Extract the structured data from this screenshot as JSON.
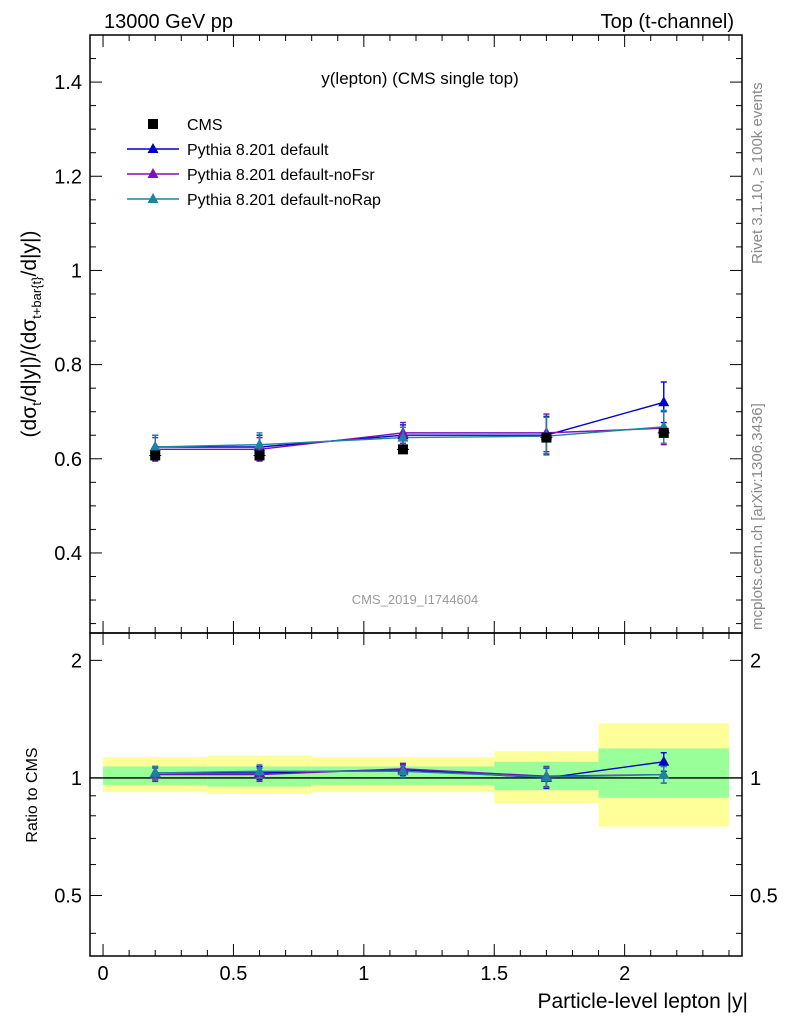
{
  "header": {
    "left": "13000 GeV pp",
    "right": "Top (t-channel)"
  },
  "side_labels": {
    "upper": "Rivet 3.1.10, ≥ 100k events",
    "lower": "mcplots.cern.ch [arXiv:1306.3436]"
  },
  "chart_data": [
    {
      "type": "line",
      "title": "y(lepton) (CMS single top)",
      "watermark": "CMS_2019_I1744604",
      "ylabel": "(dσt/d|y|)/(dσt+bar{t}/d|y|)",
      "ylim": [
        0.23,
        1.5
      ],
      "xlim": [
        -0.05,
        2.45
      ],
      "yticks": [
        "0.4",
        "0.6",
        "0.8",
        "1",
        "1.2",
        "1.4"
      ],
      "grid": false,
      "legend_position": "top-left",
      "bins": [
        [
          0,
          0.4
        ],
        [
          0.4,
          0.8
        ],
        [
          0.8,
          1.5
        ],
        [
          1.5,
          1.9
        ],
        [
          1.9,
          2.4
        ]
      ],
      "x": [
        0.2,
        0.6,
        1.15,
        1.7,
        2.15
      ],
      "series": [
        {
          "name": "CMS",
          "marker": "square",
          "color": "#000000",
          "values": [
            0.607,
            0.607,
            0.62,
            0.645,
            0.655
          ],
          "errors": [
            0.006,
            0.006,
            0.006,
            0.006,
            0.006
          ]
        },
        {
          "name": "Pythia 8.201 default",
          "marker": "triangle",
          "color": "#0000cc",
          "values": [
            0.625,
            0.625,
            0.65,
            0.65,
            0.72
          ],
          "errors": [
            0.025,
            0.025,
            0.022,
            0.04,
            0.043
          ]
        },
        {
          "name": "Pythia 8.201 default-noFsr",
          "marker": "triangle",
          "color": "#7b10b8",
          "values": [
            0.62,
            0.62,
            0.655,
            0.655,
            0.665
          ],
          "errors": [
            0.025,
            0.025,
            0.022,
            0.04,
            0.035
          ]
        },
        {
          "name": "Pythia 8.201 default-noRap",
          "marker": "triangle",
          "color": "#1e82a0",
          "values": [
            0.625,
            0.63,
            0.645,
            0.648,
            0.668
          ],
          "errors": [
            0.025,
            0.025,
            0.022,
            0.04,
            0.035
          ]
        }
      ]
    },
    {
      "type": "line",
      "ylabel": "Ratio to CMS",
      "xlabel": "Particle-level lepton |y|",
      "ylim": [
        0.35,
        2.35
      ],
      "xlim": [
        -0.05,
        2.45
      ],
      "xticks": [
        "0",
        "0.5",
        "1",
        "1.5",
        "2"
      ],
      "yticks": [
        "0.5",
        "1",
        "2"
      ],
      "grid": false,
      "bands": {
        "yellow_color": "#ffff99",
        "green_color": "#99ff99",
        "yellow": [
          [
            0.92,
            1.13
          ],
          [
            0.91,
            1.14
          ],
          [
            0.92,
            1.13
          ],
          [
            0.86,
            1.17
          ],
          [
            0.75,
            1.38
          ]
        ],
        "green": [
          [
            0.96,
            1.07
          ],
          [
            0.95,
            1.07
          ],
          [
            0.96,
            1.07
          ],
          [
            0.93,
            1.1
          ],
          [
            0.89,
            1.19
          ]
        ]
      },
      "series": [
        {
          "name": "Pythia 8.201 default",
          "color": "#0000cc",
          "values": [
            1.03,
            1.03,
            1.05,
            1.0,
            1.1
          ],
          "errors": [
            0.04,
            0.04,
            0.035,
            0.06,
            0.06
          ]
        },
        {
          "name": "Pythia 8.201 default-noFsr",
          "color": "#7b10b8",
          "values": [
            1.02,
            1.02,
            1.055,
            1.01,
            1.02
          ],
          "errors": [
            0.04,
            0.04,
            0.035,
            0.06,
            0.05
          ]
        },
        {
          "name": "Pythia 8.201 default-noRap",
          "color": "#1e82a0",
          "values": [
            1.03,
            1.04,
            1.04,
            1.005,
            1.02
          ],
          "errors": [
            0.04,
            0.04,
            0.035,
            0.06,
            0.05
          ]
        }
      ]
    }
  ]
}
